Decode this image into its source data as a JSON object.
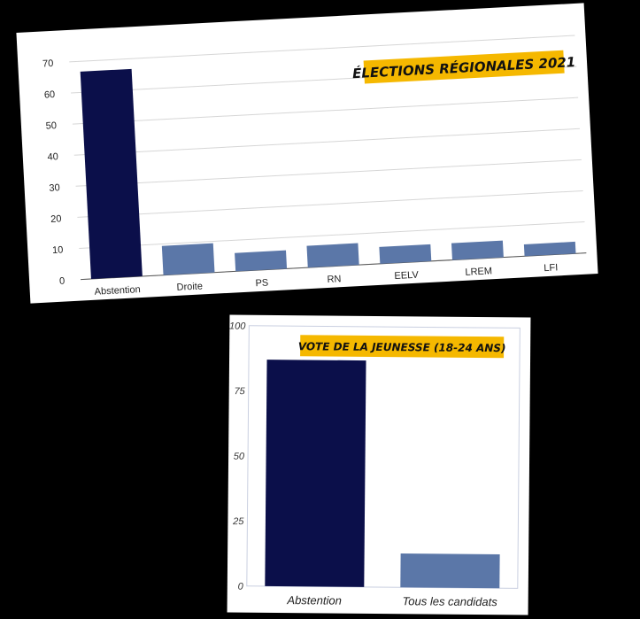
{
  "colors": {
    "dark_bar": "#0b0f4a",
    "light_bar": "#5b77a8",
    "title_bg": "#f5b800",
    "background": "#000000",
    "card": "#ffffff"
  },
  "chart_data": [
    {
      "type": "bar",
      "title": "ÉLECTIONS RÉGIONALES 2021",
      "categories": [
        "Abstention",
        "Droite",
        "PS",
        "RN",
        "EELV",
        "LREM",
        "LFI"
      ],
      "values": [
        66.7,
        9.4,
        5.9,
        7.0,
        5.4,
        5.4,
        3.8
      ],
      "ylim": [
        0,
        70
      ],
      "yticks": [
        "0",
        "10",
        "20",
        "30",
        "40",
        "50",
        "60",
        "70"
      ],
      "grid": true,
      "xlabel": "",
      "ylabel": ""
    },
    {
      "type": "bar",
      "title": "VOTE DE LA JEUNESSE (18-24 ANS)",
      "categories": [
        "Abstention",
        "Tous les candidats"
      ],
      "values": [
        87,
        13
      ],
      "ylim": [
        0,
        100
      ],
      "yticks": [
        "0",
        "25",
        "50",
        "75",
        "100"
      ],
      "grid": false,
      "xlabel": "",
      "ylabel": ""
    }
  ]
}
